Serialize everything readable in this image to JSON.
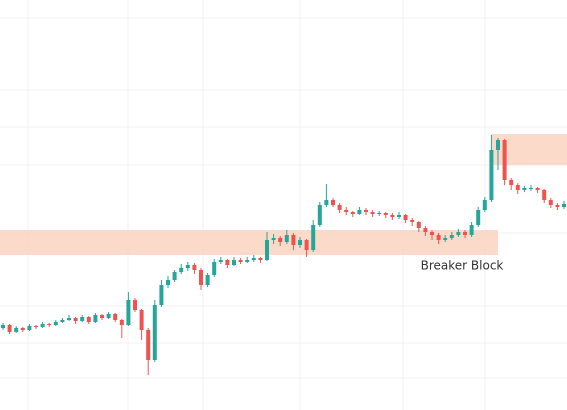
{
  "chart_data": {
    "type": "candlestick",
    "ylim": [
      0,
      410
    ],
    "up_color": "#26a69a",
    "down_color": "#ef5350",
    "zone_color": "#fbd3c0",
    "candles": [
      [
        82,
        87,
        80,
        85
      ],
      [
        85,
        86,
        76,
        78
      ],
      [
        78,
        84,
        77,
        82
      ],
      [
        82,
        83,
        78,
        80
      ],
      [
        80,
        86,
        79,
        84
      ],
      [
        84,
        85,
        81,
        83
      ],
      [
        83,
        88,
        82,
        86
      ],
      [
        86,
        87,
        83,
        85
      ],
      [
        85,
        90,
        84,
        88
      ],
      [
        88,
        92,
        87,
        90
      ],
      [
        90,
        95,
        89,
        92
      ],
      [
        92,
        93,
        86,
        89
      ],
      [
        89,
        95,
        88,
        93
      ],
      [
        93,
        94,
        86,
        88
      ],
      [
        88,
        97,
        87,
        95
      ],
      [
        95,
        96,
        90,
        92
      ],
      [
        92,
        98,
        91,
        96
      ],
      [
        96,
        97,
        88,
        90
      ],
      [
        90,
        91,
        72,
        85
      ],
      [
        85,
        118,
        84,
        110
      ],
      [
        110,
        112,
        98,
        100
      ],
      [
        100,
        101,
        70,
        80
      ],
      [
        80,
        82,
        35,
        50
      ],
      [
        50,
        110,
        48,
        105
      ],
      [
        105,
        130,
        103,
        125
      ],
      [
        125,
        134,
        122,
        130
      ],
      [
        130,
        140,
        128,
        138
      ],
      [
        138,
        146,
        136,
        142
      ],
      [
        142,
        148,
        139,
        145
      ],
      [
        145,
        147,
        136,
        140
      ],
      [
        140,
        142,
        120,
        125
      ],
      [
        125,
        137,
        123,
        135
      ],
      [
        135,
        151,
        133,
        148
      ],
      [
        148,
        153,
        146,
        150
      ],
      [
        150,
        151,
        142,
        145
      ],
      [
        145,
        153,
        144,
        150
      ],
      [
        150,
        152,
        146,
        148
      ],
      [
        148,
        153,
        147,
        150
      ],
      [
        150,
        155,
        148,
        152
      ],
      [
        152,
        153,
        147,
        150
      ],
      [
        150,
        178,
        149,
        170
      ],
      [
        170,
        176,
        166,
        172
      ],
      [
        172,
        174,
        164,
        168
      ],
      [
        168,
        180,
        166,
        175
      ],
      [
        175,
        177,
        160,
        165
      ],
      [
        165,
        173,
        162,
        170
      ],
      [
        170,
        171,
        153,
        160
      ],
      [
        160,
        190,
        158,
        185
      ],
      [
        185,
        208,
        183,
        205
      ],
      [
        205,
        226,
        203,
        210
      ],
      [
        210,
        212,
        203,
        205
      ],
      [
        205,
        207,
        197,
        200
      ],
      [
        200,
        203,
        195,
        198
      ],
      [
        198,
        199,
        193,
        196
      ],
      [
        196,
        203,
        195,
        200
      ],
      [
        200,
        202,
        195,
        198
      ],
      [
        198,
        200,
        193,
        196
      ],
      [
        196,
        199,
        194,
        197
      ],
      [
        197,
        198,
        192,
        195
      ],
      [
        195,
        197,
        190,
        193
      ],
      [
        193,
        198,
        191,
        195
      ],
      [
        195,
        196,
        187,
        190
      ],
      [
        190,
        192,
        184,
        188
      ],
      [
        188,
        189,
        178,
        182
      ],
      [
        182,
        184,
        174,
        178
      ],
      [
        178,
        180,
        170,
        175
      ],
      [
        175,
        177,
        166,
        170
      ],
      [
        170,
        175,
        168,
        172
      ],
      [
        172,
        178,
        170,
        175
      ],
      [
        175,
        181,
        173,
        178
      ],
      [
        178,
        180,
        172,
        175
      ],
      [
        175,
        188,
        173,
        185
      ],
      [
        185,
        203,
        183,
        200
      ],
      [
        200,
        213,
        198,
        210
      ],
      [
        210,
        275,
        208,
        260
      ],
      [
        260,
        272,
        240,
        270
      ],
      [
        270,
        271,
        225,
        230
      ],
      [
        230,
        232,
        220,
        225
      ],
      [
        225,
        227,
        216,
        220
      ],
      [
        220,
        224,
        218,
        222
      ],
      [
        222,
        225,
        219,
        222
      ],
      [
        222,
        223,
        217,
        220
      ],
      [
        220,
        221,
        207,
        210
      ],
      [
        210,
        212,
        202,
        205
      ],
      [
        205,
        207,
        200,
        203
      ],
      [
        203,
        209,
        201,
        206
      ]
    ],
    "zones": [
      {
        "from": -1,
        "to": 75,
        "low": 155,
        "high": 180
      },
      {
        "from": 74,
        "to": 86,
        "low": 245,
        "high": 276
      }
    ],
    "annotation": "Breaker Block"
  }
}
